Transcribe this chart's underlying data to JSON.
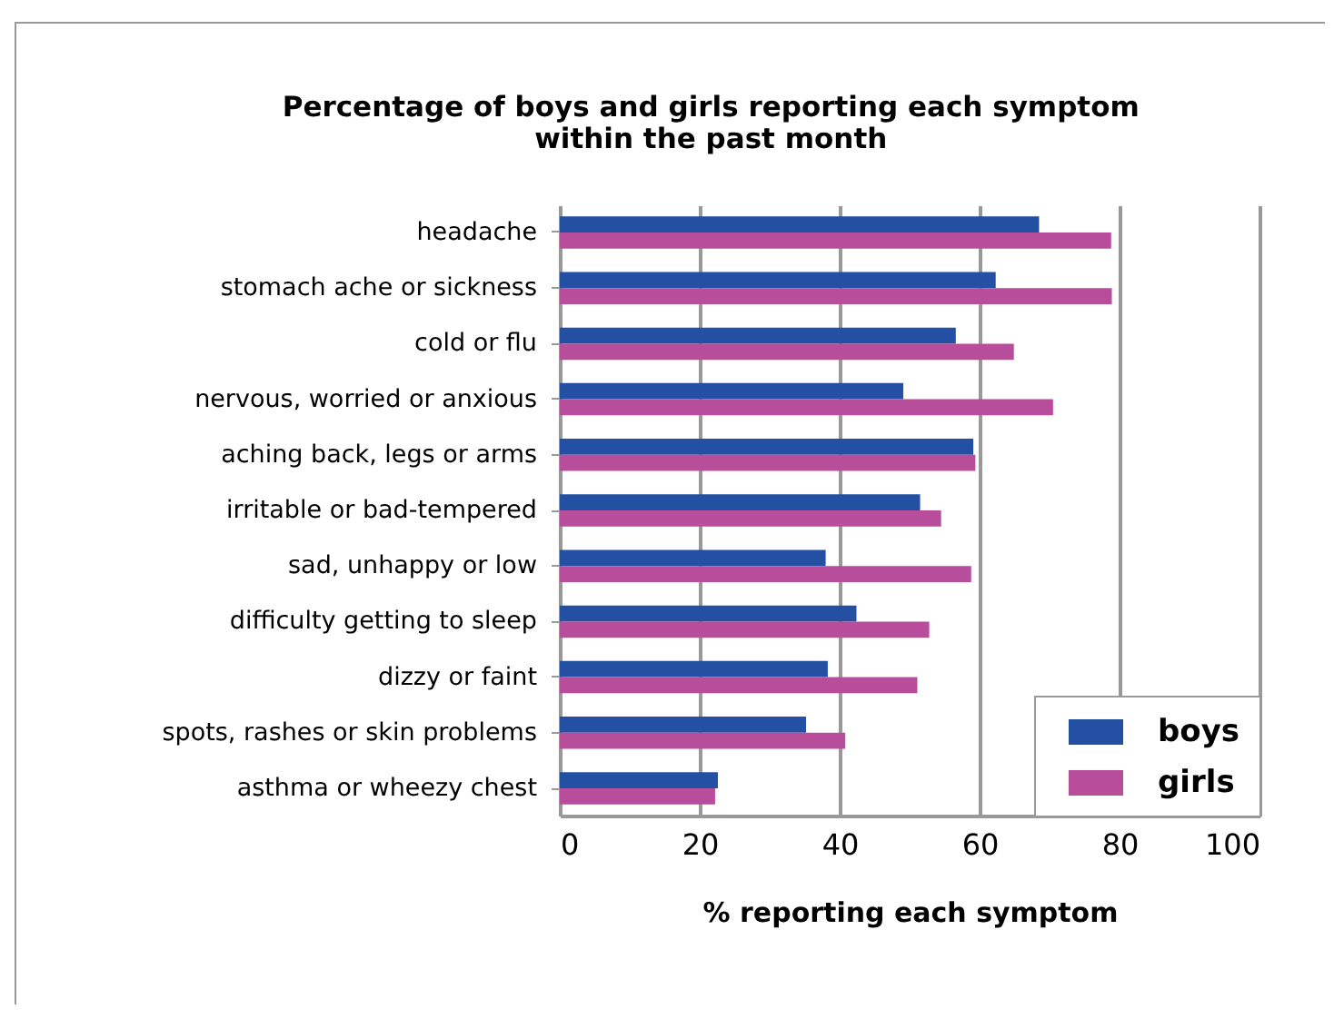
{
  "chart_data": {
    "type": "bar",
    "orientation": "horizontal",
    "title": "Percentage of boys and girls reporting each symptom\nwithin the past month",
    "xlabel": "% reporting each symptom",
    "categories": [
      "headache",
      "stomach ache or sickness",
      "cold or flu",
      "nervous, worried or anxious",
      "aching back, legs or arms",
      "irritable or bad-tempered",
      "sad, unhappy or low",
      "difficulty getting to sleep",
      "dizzy or faint",
      "spots, rashes or skin problems",
      "asthma or wheezy chest"
    ],
    "series": [
      {
        "name": "boys",
        "color": "#2450a4",
        "values": [
          68.5,
          62.3,
          56.6,
          49.1,
          59.1,
          51.5,
          38.0,
          42.4,
          38.3,
          35.2,
          22.6
        ]
      },
      {
        "name": "girls",
        "color": "#b84d9c",
        "values": [
          78.8,
          78.9,
          64.9,
          70.5,
          59.4,
          54.5,
          58.8,
          52.8,
          51.1,
          40.8,
          22.2
        ]
      }
    ],
    "xlim": [
      0,
      100
    ],
    "xticks": [
      0,
      20,
      40,
      60,
      80,
      100
    ],
    "grid": "x",
    "legend": "bottom right"
  }
}
